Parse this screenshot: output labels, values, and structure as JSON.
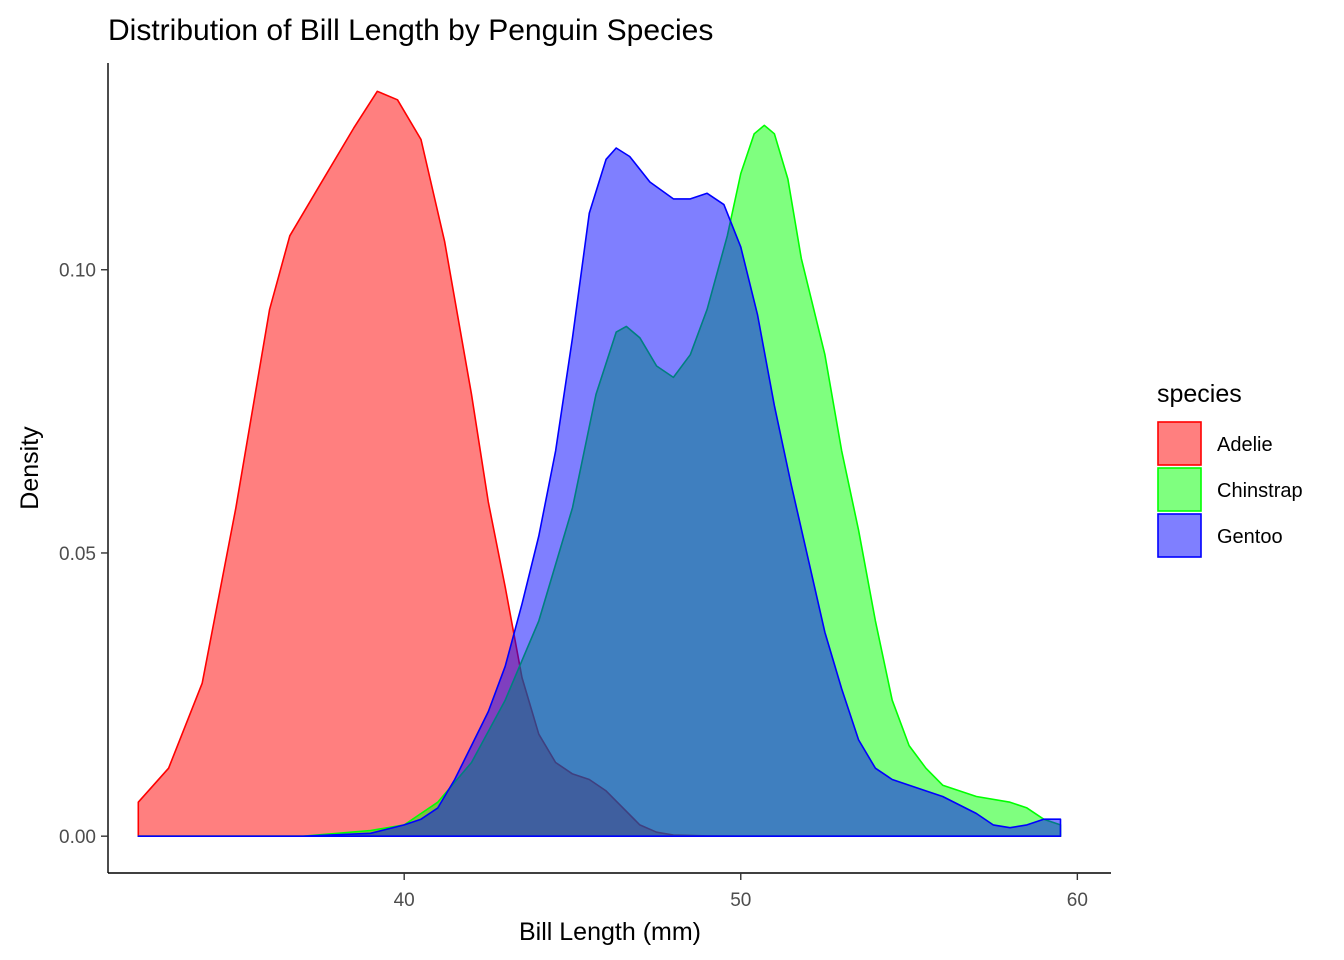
{
  "chart_data": {
    "type": "area",
    "subtype": "density",
    "title": "Distribution of Bill Length by Penguin Species",
    "xlabel": "Bill Length (mm)",
    "ylabel": "Density",
    "xlim": [
      31.2,
      61.0
    ],
    "ylim": [
      -0.0065,
      0.1365
    ],
    "x_ticks": [
      40,
      50,
      60
    ],
    "x_tick_labels": [
      "40",
      "50",
      "60"
    ],
    "y_ticks": [
      0.0,
      0.05,
      0.1
    ],
    "y_tick_labels": [
      "0.00",
      "0.05",
      "0.10"
    ],
    "grid": false,
    "legend": {
      "title": "species",
      "position": "right"
    },
    "series": [
      {
        "name": "Adelie",
        "fill": "#ff0000",
        "stroke": "#ff0000",
        "fill_opacity": 0.5,
        "points": [
          [
            32.1,
            0.006
          ],
          [
            33,
            0.012
          ],
          [
            34,
            0.027
          ],
          [
            35,
            0.058
          ],
          [
            36,
            0.093
          ],
          [
            36.6,
            0.106
          ],
          [
            37.5,
            0.115
          ],
          [
            38.5,
            0.125
          ],
          [
            39.2,
            0.1315
          ],
          [
            39.8,
            0.13
          ],
          [
            40.5,
            0.123
          ],
          [
            41.2,
            0.105
          ],
          [
            42,
            0.078
          ],
          [
            42.5,
            0.059
          ],
          [
            43,
            0.044
          ],
          [
            43.5,
            0.028
          ],
          [
            44,
            0.018
          ],
          [
            44.5,
            0.013
          ],
          [
            45,
            0.011
          ],
          [
            45.5,
            0.01
          ],
          [
            46,
            0.008
          ],
          [
            46.5,
            0.005
          ],
          [
            47,
            0.002
          ],
          [
            47.5,
            0.0007
          ],
          [
            48,
            0.0002
          ],
          [
            49,
            5e-05
          ],
          [
            50,
            0.0
          ],
          [
            59.5,
            0.0
          ]
        ]
      },
      {
        "name": "Chinstrap",
        "fill": "#00ff00",
        "stroke": "#00ff00",
        "fill_opacity": 0.5,
        "points": [
          [
            32.1,
            0.0
          ],
          [
            37,
            0.0
          ],
          [
            39,
            0.001
          ],
          [
            40,
            0.002
          ],
          [
            40.5,
            0.004
          ],
          [
            41,
            0.006
          ],
          [
            42,
            0.013
          ],
          [
            43,
            0.024
          ],
          [
            44,
            0.038
          ],
          [
            45,
            0.058
          ],
          [
            45.7,
            0.078
          ],
          [
            46.3,
            0.089
          ],
          [
            46.6,
            0.09
          ],
          [
            47,
            0.088
          ],
          [
            47.5,
            0.083
          ],
          [
            48,
            0.081
          ],
          [
            48.5,
            0.085
          ],
          [
            49,
            0.093
          ],
          [
            49.6,
            0.106
          ],
          [
            50,
            0.117
          ],
          [
            50.4,
            0.124
          ],
          [
            50.7,
            0.1255
          ],
          [
            51,
            0.124
          ],
          [
            51.4,
            0.116
          ],
          [
            51.8,
            0.102
          ],
          [
            52.5,
            0.085
          ],
          [
            53,
            0.068
          ],
          [
            53.5,
            0.054
          ],
          [
            54,
            0.038
          ],
          [
            54.5,
            0.024
          ],
          [
            55,
            0.016
          ],
          [
            55.5,
            0.012
          ],
          [
            56,
            0.009
          ],
          [
            57,
            0.007
          ],
          [
            58,
            0.006
          ],
          [
            58.5,
            0.005
          ],
          [
            59,
            0.003
          ],
          [
            59.5,
            0.002
          ]
        ]
      },
      {
        "name": "Gentoo",
        "fill": "#0000ff",
        "stroke": "#0000ff",
        "fill_opacity": 0.5,
        "points": [
          [
            32.1,
            0.0
          ],
          [
            37,
            0.0
          ],
          [
            39,
            0.0005
          ],
          [
            40,
            0.002
          ],
          [
            40.5,
            0.003
          ],
          [
            41,
            0.005
          ],
          [
            41.5,
            0.01
          ],
          [
            42,
            0.016
          ],
          [
            42.5,
            0.022
          ],
          [
            43,
            0.03
          ],
          [
            43.5,
            0.041
          ],
          [
            44,
            0.053
          ],
          [
            44.5,
            0.068
          ],
          [
            45,
            0.088
          ],
          [
            45.5,
            0.11
          ],
          [
            46,
            0.1195
          ],
          [
            46.3,
            0.1215
          ],
          [
            46.7,
            0.12
          ],
          [
            47.3,
            0.1155
          ],
          [
            48,
            0.1125
          ],
          [
            48.5,
            0.1125
          ],
          [
            49,
            0.1135
          ],
          [
            49.5,
            0.1115
          ],
          [
            50,
            0.104
          ],
          [
            50.5,
            0.092
          ],
          [
            51,
            0.076
          ],
          [
            51.5,
            0.062
          ],
          [
            52,
            0.049
          ],
          [
            52.5,
            0.036
          ],
          [
            53,
            0.026
          ],
          [
            53.5,
            0.017
          ],
          [
            54,
            0.012
          ],
          [
            54.5,
            0.01
          ],
          [
            55.5,
            0.008
          ],
          [
            56,
            0.007
          ],
          [
            57,
            0.004
          ],
          [
            57.5,
            0.002
          ],
          [
            58,
            0.0015
          ],
          [
            58.5,
            0.002
          ],
          [
            59,
            0.003
          ],
          [
            59.5,
            0.003
          ]
        ]
      }
    ]
  }
}
